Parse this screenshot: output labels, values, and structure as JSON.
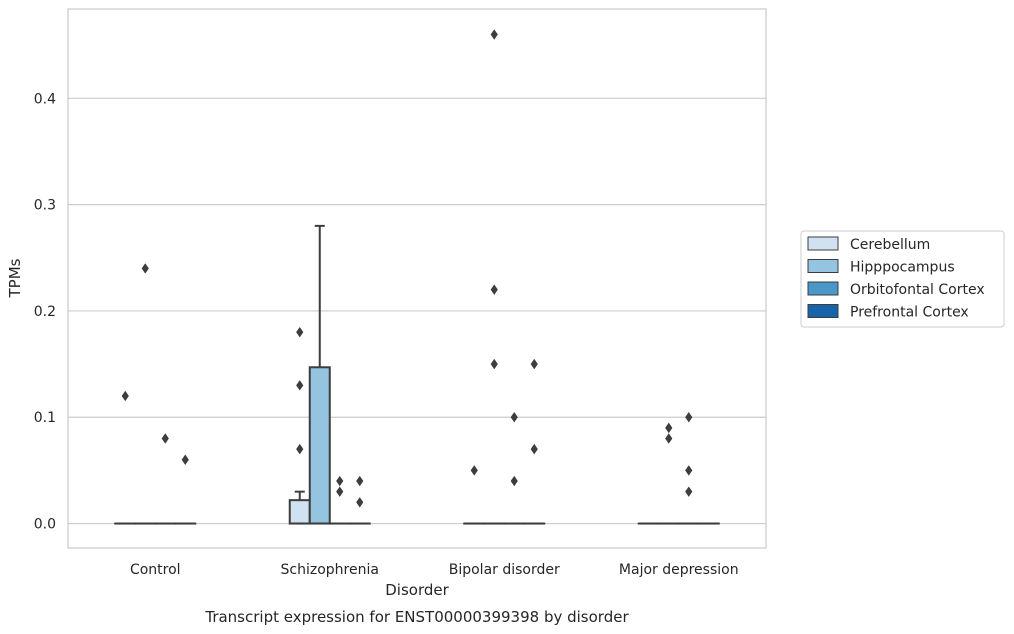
{
  "chart_data": {
    "type": "box",
    "caption": "Transcript expression for ENST00000399398 by disorder",
    "xlabel": "Disorder",
    "ylabel": "TPMs",
    "ylim": [
      -0.023,
      0.484
    ],
    "yticks": [
      0.0,
      0.1,
      0.2,
      0.3,
      0.4
    ],
    "ytick_labels": [
      "0.0",
      "0.1",
      "0.2",
      "0.3",
      "0.4"
    ],
    "grid": "horizontal",
    "legend_position": "right",
    "categories": [
      "Control",
      "Schizophrenia",
      "Bipolar disorder",
      "Major depression"
    ],
    "series": [
      {
        "name": "Cerebellum",
        "color": "#d0e1f2",
        "boxes": [
          {
            "q1": 0,
            "median": 0,
            "q3": 0,
            "whisker_low": 0,
            "whisker_high": 0,
            "outliers": [
              0.12
            ]
          },
          {
            "q1": 0,
            "median": 0,
            "q3": 0.022,
            "whisker_low": 0,
            "whisker_high": 0.03,
            "outliers": [
              0.07,
              0.13,
              0.18
            ]
          },
          {
            "q1": 0,
            "median": 0,
            "q3": 0,
            "whisker_low": 0,
            "whisker_high": 0,
            "outliers": [
              0.05
            ]
          },
          {
            "q1": 0,
            "median": 0,
            "q3": 0,
            "whisker_low": 0,
            "whisker_high": 0,
            "outliers": []
          }
        ]
      },
      {
        "name": "Hipppocampus",
        "color": "#94c4df",
        "boxes": [
          {
            "q1": 0,
            "median": 0,
            "q3": 0,
            "whisker_low": 0,
            "whisker_high": 0,
            "outliers": [
              0.24
            ]
          },
          {
            "q1": 0,
            "median": 0,
            "q3": 0.147,
            "whisker_low": 0,
            "whisker_high": 0.28,
            "outliers": []
          },
          {
            "q1": 0,
            "median": 0,
            "q3": 0,
            "whisker_low": 0,
            "whisker_high": 0,
            "outliers": [
              0.15,
              0.22,
              0.46
            ]
          },
          {
            "q1": 0,
            "median": 0,
            "q3": 0,
            "whisker_low": 0,
            "whisker_high": 0,
            "outliers": [
              0.08,
              0.09
            ]
          }
        ]
      },
      {
        "name": "Orbitofontal Cortex",
        "color": "#4a98c9",
        "boxes": [
          {
            "q1": 0,
            "median": 0,
            "q3": 0,
            "whisker_low": 0,
            "whisker_high": 0,
            "outliers": [
              0.08
            ]
          },
          {
            "q1": 0,
            "median": 0,
            "q3": 0,
            "whisker_low": 0,
            "whisker_high": 0,
            "outliers": [
              0.03,
              0.04
            ]
          },
          {
            "q1": 0,
            "median": 0,
            "q3": 0,
            "whisker_low": 0,
            "whisker_high": 0,
            "outliers": [
              0.04,
              0.1
            ]
          },
          {
            "q1": 0,
            "median": 0,
            "q3": 0,
            "whisker_low": 0,
            "whisker_high": 0,
            "outliers": [
              0.03,
              0.05,
              0.1
            ]
          }
        ]
      },
      {
        "name": "Prefrontal Cortex",
        "color": "#1764ab",
        "boxes": [
          {
            "q1": 0,
            "median": 0,
            "q3": 0,
            "whisker_low": 0,
            "whisker_high": 0,
            "outliers": [
              0.06
            ]
          },
          {
            "q1": 0,
            "median": 0,
            "q3": 0,
            "whisker_low": 0,
            "whisker_high": 0,
            "outliers": [
              0.02,
              0.04
            ]
          },
          {
            "q1": 0,
            "median": 0,
            "q3": 0,
            "whisker_low": 0,
            "whisker_high": 0,
            "outliers": [
              0.07,
              0.15
            ]
          },
          {
            "q1": 0,
            "median": 0,
            "q3": 0,
            "whisker_low": 0,
            "whisker_high": 0,
            "outliers": []
          }
        ]
      }
    ]
  }
}
